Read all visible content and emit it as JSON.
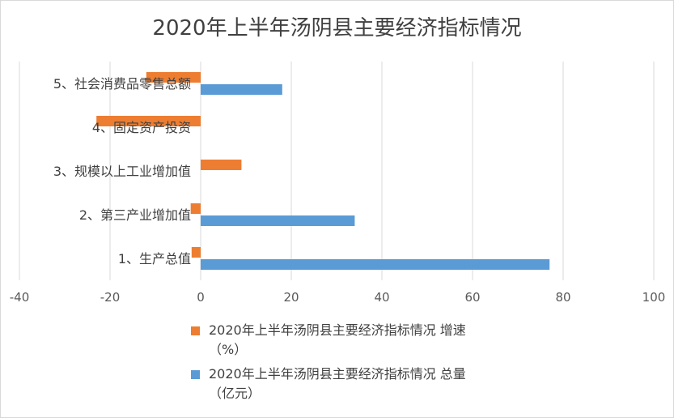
{
  "chart_data": {
    "type": "bar",
    "orientation": "horizontal",
    "title": "2020年上半年汤阴县主要经济指标情况",
    "categories": [
      "1、生产总值",
      "2、第三产业增加值",
      "3、规模以上工业增加值",
      "4、固定资产投资",
      "5、社会消费品零售总额"
    ],
    "series": [
      {
        "name": "2020年上半年汤阴县主要经济指标情况 增速（%）",
        "name_lines": [
          "2020年上半年汤阴县主要经济指标情况 增速",
          "（%）"
        ],
        "color": "#ed7d31",
        "values": [
          -2.0,
          -2.2,
          9.0,
          -23.0,
          -12.0
        ]
      },
      {
        "name": "2020年上半年汤阴县主要经济指标情况 总量（亿元）",
        "name_lines": [
          "2020年上半年汤阴县主要经济指标情况 总量",
          "（亿元）"
        ],
        "color": "#5b9bd5",
        "values": [
          77.0,
          34.0,
          null,
          null,
          18.0
        ]
      }
    ],
    "xlim": [
      -40,
      100
    ],
    "xticks": [
      "-40",
      "-20",
      "0",
      "20",
      "40",
      "60",
      "80",
      "100"
    ],
    "grid": true,
    "legend_position": "bottom"
  }
}
